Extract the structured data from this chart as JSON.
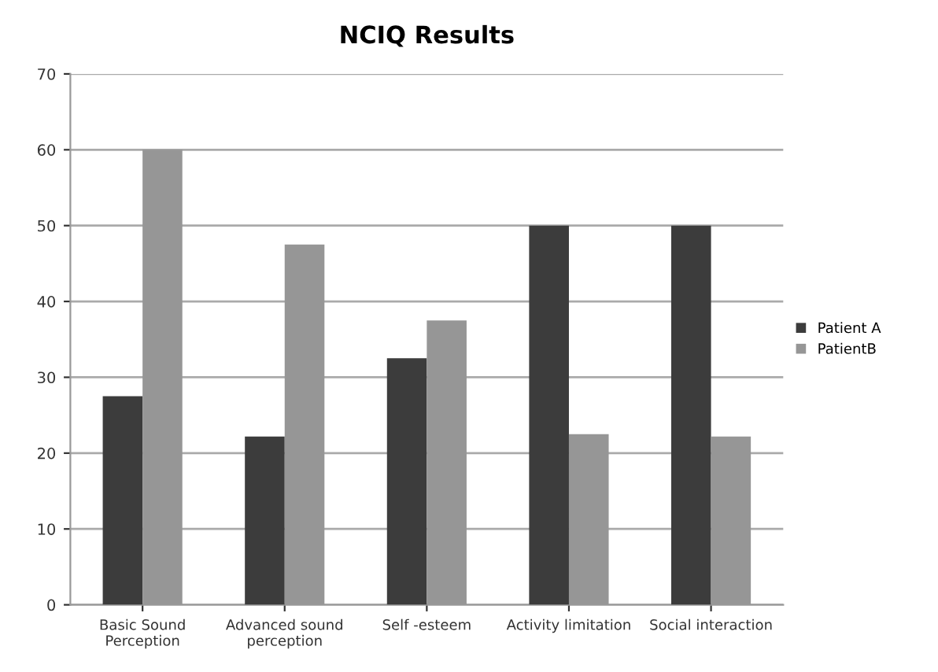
{
  "chart_data": {
    "type": "bar",
    "title": "NCIQ Results",
    "categories": [
      "Basic Sound\nPerception",
      "Advanced sound\nperception",
      "Self -esteem",
      "Activity limitation",
      "Social interaction"
    ],
    "series": [
      {
        "name": "Patient A",
        "color": "#3c3c3c",
        "values": [
          27.5,
          22.2,
          32.5,
          50,
          50
        ]
      },
      {
        "name": "PatientB",
        "color": "#969696",
        "values": [
          60,
          47.5,
          37.5,
          22.5,
          22.2
        ]
      }
    ],
    "ylim": [
      0,
      70
    ],
    "yticks": [
      0,
      10,
      20,
      30,
      40,
      50,
      60,
      70
    ],
    "grid": "y",
    "legend": "right"
  }
}
